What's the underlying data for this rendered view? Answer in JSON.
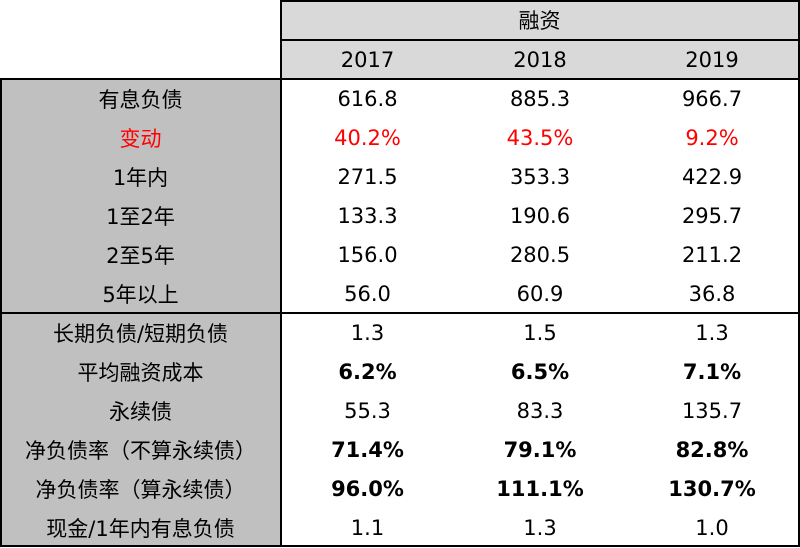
{
  "header": {
    "group_label": "融资",
    "years": [
      "2017",
      "2018",
      "2019"
    ]
  },
  "sections": [
    {
      "rows": [
        {
          "label": "有息负债",
          "values": [
            "616.8",
            "885.3",
            "966.7"
          ]
        },
        {
          "label": "变动",
          "values": [
            "40.2%",
            "43.5%",
            "9.2%"
          ],
          "color": "#ff0000"
        },
        {
          "label": "1年内",
          "values": [
            "271.5",
            "353.3",
            "422.9"
          ]
        },
        {
          "label": "1至2年",
          "values": [
            "133.3",
            "190.6",
            "295.7"
          ]
        },
        {
          "label": "2至5年",
          "values": [
            "156.0",
            "280.5",
            "211.2"
          ]
        },
        {
          "label": "5年以上",
          "values": [
            "56.0",
            "60.9",
            "36.8"
          ]
        }
      ]
    },
    {
      "rows": [
        {
          "label": "长期负债/短期负债",
          "values": [
            "1.3",
            "1.5",
            "1.3"
          ]
        },
        {
          "label": "平均融资成本",
          "values": [
            "6.2%",
            "6.5%",
            "7.1%"
          ],
          "bold": true
        },
        {
          "label": "永续债",
          "values": [
            "55.3",
            "83.3",
            "135.7"
          ]
        },
        {
          "label": "净负债率（不算永续债）",
          "values": [
            "71.4%",
            "79.1%",
            "82.8%"
          ],
          "bold": true
        },
        {
          "label": "净负债率（算永续债）",
          "values": [
            "96.0%",
            "111.1%",
            "130.7%"
          ],
          "bold": true
        },
        {
          "label": "现金/1年内有息负债",
          "values": [
            "1.1",
            "1.3",
            "1.0"
          ]
        }
      ]
    }
  ],
  "colors": {
    "header_fill": "#d9d9d9",
    "label_fill": "#c0c0c0",
    "highlight_text": "#ff0000"
  }
}
